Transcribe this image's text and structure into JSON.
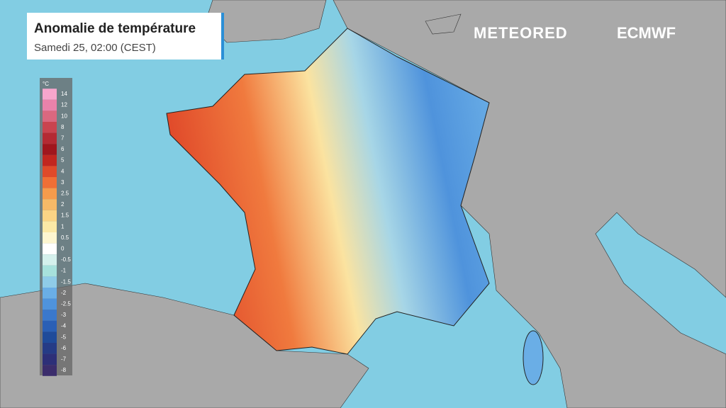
{
  "header": {
    "title": "Anomalie de température",
    "subtitle": "Samedi 25, 02:00 (CEST)"
  },
  "logos": {
    "left": "METEORED",
    "right": "ECMWF"
  },
  "legend": {
    "unit": "°C",
    "items": [
      {
        "label": "14",
        "color": "#f7a6cc"
      },
      {
        "label": "12",
        "color": "#ea82aa"
      },
      {
        "label": "10",
        "color": "#d9687f"
      },
      {
        "label": "8",
        "color": "#c9444f"
      },
      {
        "label": "7",
        "color": "#b42a33"
      },
      {
        "label": "6",
        "color": "#a0161d"
      },
      {
        "label": "5",
        "color": "#c2261f"
      },
      {
        "label": "4",
        "color": "#e04a2a"
      },
      {
        "label": "3",
        "color": "#f06f36"
      },
      {
        "label": "2.5",
        "color": "#f59b4c"
      },
      {
        "label": "2",
        "color": "#f7b967"
      },
      {
        "label": "1.5",
        "color": "#fad485"
      },
      {
        "label": "1",
        "color": "#fbe9a6"
      },
      {
        "label": "0.5",
        "color": "#fdf6d0"
      },
      {
        "label": "0",
        "color": "#ffffff"
      },
      {
        "label": "-0.5",
        "color": "#d4f0ec"
      },
      {
        "label": "-1",
        "color": "#a7e1dc"
      },
      {
        "label": "-1.5",
        "color": "#8fcce8"
      },
      {
        "label": "-2",
        "color": "#6aaee6"
      },
      {
        "label": "-2.5",
        "color": "#4f93dc"
      },
      {
        "label": "-3",
        "color": "#3a78cc"
      },
      {
        "label": "-4",
        "color": "#2a5fb5"
      },
      {
        "label": "-5",
        "color": "#1f4b9a"
      },
      {
        "label": "-6",
        "color": "#253b86"
      },
      {
        "label": "-7",
        "color": "#2d2f78"
      },
      {
        "label": "-8",
        "color": "#3b2d6c"
      }
    ]
  }
}
